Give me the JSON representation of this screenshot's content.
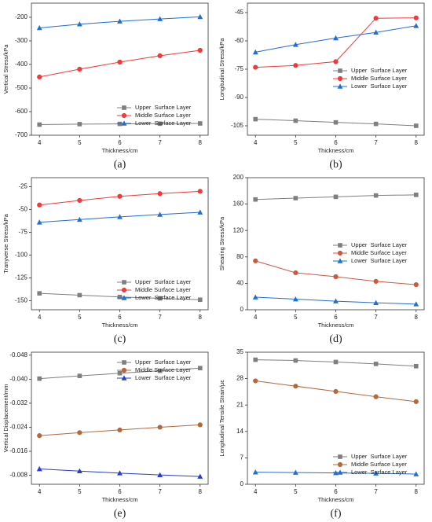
{
  "chart_data": [
    {
      "type": "line",
      "caption": "(a)",
      "x_label": "Thickness/cm",
      "y_label": "Vertical Stress/kPa",
      "x": [
        4,
        5,
        6,
        7,
        8
      ],
      "xlim": [
        3.8,
        8.2
      ],
      "xticks": [
        4,
        5,
        6,
        7,
        8
      ],
      "ylim": [
        -700,
        -140
      ],
      "yticks": [
        -700,
        -600,
        -500,
        -400,
        -300,
        -200
      ],
      "legend": "lower right",
      "series": [
        {
          "name": "Upper  Surface Layer",
          "color": "#7f7f7f",
          "marker": "square",
          "values": [
            -655,
            -653,
            -652,
            -651,
            -650
          ]
        },
        {
          "name": "Middle Surface Layer",
          "color": "#f23a3a",
          "marker": "circle",
          "values": [
            -453,
            -420,
            -390,
            -363,
            -340
          ]
        },
        {
          "name": "Lower  Surface Layer",
          "color": "#1f6fd4",
          "marker": "triangle",
          "values": [
            -245,
            -229,
            -217,
            -207,
            -198
          ]
        }
      ]
    },
    {
      "type": "line",
      "caption": "(b)",
      "x_label": "Thickness/cm",
      "y_label": "Longitudinal Stress/kPa",
      "x": [
        4,
        5,
        6,
        7,
        8
      ],
      "xlim": [
        3.8,
        8.2
      ],
      "xticks": [
        4,
        5,
        6,
        7,
        8
      ],
      "ylim": [
        -110,
        -40
      ],
      "yticks": [
        -105,
        -90,
        -75,
        -60,
        -45
      ],
      "legend": "center right",
      "series": [
        {
          "name": "Upper  Surface Layer",
          "color": "#7f7f7f",
          "marker": "square",
          "values": [
            -101.5,
            -102.3,
            -103.2,
            -104,
            -105
          ]
        },
        {
          "name": "Middle Surface Layer",
          "color": "#f23a3a",
          "marker": "circle",
          "values": [
            -74,
            -73,
            -71,
            -48,
            -47.8
          ]
        },
        {
          "name": "Lower  Surface Layer",
          "color": "#1f6fd4",
          "marker": "triangle",
          "values": [
            -66,
            -62,
            -58.5,
            -55.5,
            -52
          ]
        }
      ]
    },
    {
      "type": "line",
      "caption": "(c)",
      "x_label": "Thickness/cm",
      "y_label": "Tranyverse Stress/kPa",
      "x": [
        4,
        5,
        6,
        7,
        8
      ],
      "xlim": [
        3.8,
        8.2
      ],
      "xticks": [
        4,
        5,
        6,
        7,
        8
      ],
      "ylim": [
        -160,
        -15
      ],
      "yticks": [
        -150,
        -125,
        -100,
        -75,
        -50,
        -25
      ],
      "legend": "lower right",
      "series": [
        {
          "name": "Upper  Surface Layer",
          "color": "#7f7f7f",
          "marker": "square",
          "values": [
            -142,
            -144,
            -146,
            -147.5,
            -149
          ]
        },
        {
          "name": "Middle Surface Layer",
          "color": "#f23a3a",
          "marker": "circle",
          "values": [
            -45,
            -40,
            -35.5,
            -32.5,
            -30
          ]
        },
        {
          "name": "Lower  Surface Layer",
          "color": "#1f6fd4",
          "marker": "triangle",
          "values": [
            -64,
            -61,
            -58,
            -55.5,
            -53
          ]
        }
      ]
    },
    {
      "type": "line",
      "caption": "(d)",
      "x_label": "Thickness/cm",
      "y_label": "Shearing Stress/kPa",
      "x": [
        4,
        5,
        6,
        7,
        8
      ],
      "xlim": [
        3.8,
        8.2
      ],
      "xticks": [
        4,
        5,
        6,
        7,
        8
      ],
      "ylim": [
        0,
        200
      ],
      "yticks": [
        0,
        40,
        80,
        120,
        160,
        200
      ],
      "legend": "center right",
      "series": [
        {
          "name": "Upper  Surface Layer",
          "color": "#7f7f7f",
          "marker": "square",
          "values": [
            167,
            169,
            171,
            173,
            174
          ]
        },
        {
          "name": "Middle Surface Layer",
          "color": "#d0583f",
          "marker": "circle",
          "values": [
            74,
            56,
            50,
            43,
            38
          ]
        },
        {
          "name": "Lower  Surface Layer",
          "color": "#1f6fd4",
          "marker": "triangle",
          "values": [
            19,
            16,
            13,
            10.5,
            8.5
          ]
        }
      ]
    },
    {
      "type": "line",
      "caption": "(e)",
      "x_label": "Thickness/cm",
      "y_label": "Vertical Displacement/mm",
      "x": [
        4,
        5,
        6,
        7,
        8
      ],
      "xlim": [
        3.8,
        8.2
      ],
      "xticks": [
        4,
        5,
        6,
        7,
        8
      ],
      "ylim": [
        -0.005,
        -0.049
      ],
      "yticks": [
        -0.008,
        -0.016,
        -0.024,
        -0.032,
        {
          "value": -0.04,
          "label": "-0.040"
        },
        -0.048
      ],
      "legend": "upper right",
      "series": [
        {
          "name": "Upper  Surface Layer",
          "color": "#7f7f7f",
          "marker": "square",
          "values": [
            -0.0402,
            -0.0411,
            -0.042,
            -0.0428,
            -0.0437
          ]
        },
        {
          "name": "Middle Surface Layer",
          "color": "#b5693a",
          "marker": "circle",
          "values": [
            -0.0212,
            -0.0222,
            -0.0231,
            -0.024,
            -0.0248
          ]
        },
        {
          "name": "Lower  Surface Layer",
          "color": "#2a3bd0",
          "marker": "triangle",
          "values": [
            -0.0101,
            -0.0094,
            -0.0087,
            -0.0081,
            -0.0076
          ]
        }
      ]
    },
    {
      "type": "line",
      "caption": "(f)",
      "x_label": "Thickness/cm",
      "y_label": "Longitudinal Tensile Strain/με",
      "x": [
        4,
        5,
        6,
        7,
        8
      ],
      "xlim": [
        3.8,
        8.2
      ],
      "xticks": [
        4,
        5,
        6,
        7,
        8
      ],
      "ylim": [
        0,
        35
      ],
      "yticks": [
        0,
        7,
        14,
        21,
        28,
        35
      ],
      "legend": "lower right",
      "series": [
        {
          "name": "Upper  Surface Layer",
          "color": "#7f7f7f",
          "marker": "square",
          "values": [
            33,
            32.8,
            32.4,
            31.9,
            31.3
          ]
        },
        {
          "name": "Middle Surface Layer",
          "color": "#b5693a",
          "marker": "circle",
          "values": [
            27.4,
            26,
            24.6,
            23.2,
            21.9
          ]
        },
        {
          "name": "Lower  Surface Layer",
          "color": "#1f6fd4",
          "marker": "triangle",
          "values": [
            3.2,
            3.1,
            3.0,
            2.9,
            2.7
          ]
        }
      ]
    }
  ]
}
